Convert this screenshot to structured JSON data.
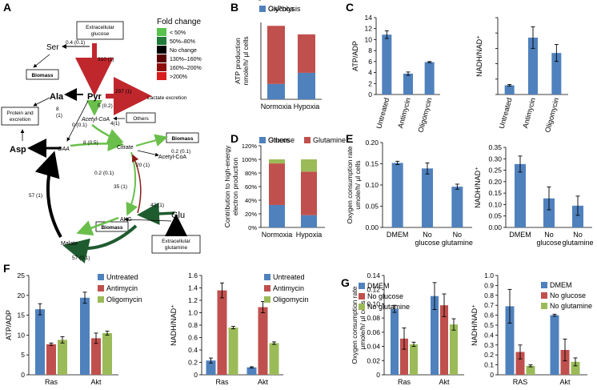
{
  "colors": {
    "blue": "#4f81bd",
    "red": "#c0504d",
    "green": "#9bbb59",
    "flux_red": "#c0272d",
    "flux_green": "#6abf4b",
    "flux_dark": "#1e5b2e",
    "legend": [
      "#57c24c",
      "#207a3a",
      "#000000",
      "#5a0000",
      "#8e0e0e",
      "#d81e1e"
    ]
  },
  "panelA": {
    "label": "A",
    "legend_title": "Fold change",
    "legend_items": [
      "< 50%",
      "50%–80%",
      "No change",
      "130%–160%",
      "160%–200%",
      ">200%"
    ],
    "boxes": {
      "ext_glucose": "Extracellular\nglucose",
      "biomass1": "Biomass",
      "others": "Others",
      "protein": "Protein and\nexcretion",
      "biomass2": "Biomass",
      "biomass3": "Biomass",
      "ext_glutamine": "Extracellular\nglutamine"
    },
    "metabolites": {
      "ser": "Ser",
      "pyr": "Pyr",
      "ala": "Ala",
      "asp": "Asp",
      "oaa": "OAA",
      "acetyl_coa": "Acetyl-CoA",
      "citrate": "Citrate",
      "acetyl_coa2": "Acetyl-CoA",
      "malate": "Malate",
      "akg": "AKG",
      "glu": "Glu",
      "lactate": "Lactate excretion"
    },
    "fluxes": {
      "glc_ser": "0.4 (0.1)",
      "glc_pyr": "310 (1)",
      "lact": "297 (1)",
      "pyr_ala": "8\n(1)",
      "pyr_oaa": "0 (0.1)",
      "pyr_acoa": "5 (0.2)",
      "others": "4(1)",
      "oaa_cit": "8 (0.5)",
      "cit_acoa": "0.2 (0.1)",
      "cit_akg": "0.2 (0.1)",
      "akg_mal": "35 (1)",
      "cit_up": "20 (1)",
      "glu_akg": "42 (1)",
      "mal_oaa": "57 (1)",
      "akg_mal_low": "57 (0.1)"
    }
  },
  "panelB": {
    "label": "B",
    "ylabel": "ATP production\nnmole/h/ μl cells",
    "chart_data": {
      "type": "bar",
      "stacked": true,
      "categories": [
        "Normoxia",
        "Hypoxia"
      ],
      "series": [
        {
          "name": "Glycolysis",
          "values": [
            180,
            310
          ]
        },
        {
          "name": "OxPhos",
          "values": [
            680,
            450
          ]
        }
      ],
      "legend": [
        "OxPhos",
        "Glycolysis"
      ],
      "ylim": [
        0,
        900
      ]
    }
  },
  "panelC": {
    "label": "C",
    "charts": [
      {
        "type": "bar",
        "ylabel": "ATP/ADP",
        "categories": [
          "Untreated",
          "Antimycin",
          "Oligomycin"
        ],
        "values": [
          10.9,
          3.8,
          5.9
        ],
        "errors": [
          0.7,
          0.3,
          0.1
        ],
        "ylim": [
          0,
          14
        ],
        "yticks": [
          "0",
          "2",
          "4",
          "6",
          "8",
          "10",
          "12",
          "14"
        ]
      },
      {
        "type": "bar",
        "ylabel": "NADH/NAD⁺",
        "categories": [
          "Untreated",
          "Antimycin",
          "Oligomycin"
        ],
        "values": [
          0.6,
          3.7,
          2.7
        ],
        "errors": [
          0.05,
          0.7,
          0.55
        ],
        "ylim": [
          0,
          5
        ],
        "yticks": [
          "",
          "",
          "",
          "",
          "",
          ""
        ]
      }
    ]
  },
  "panelD": {
    "label": "D",
    "ylabel": "Contribution to high-energy\nelectron production",
    "chart_data": {
      "type": "bar",
      "stacked": true,
      "categories": [
        "Normoxia",
        "Hypoxia"
      ],
      "series": [
        {
          "name": "Glucose",
          "values": [
            33,
            18
          ]
        },
        {
          "name": "Glutamine",
          "values": [
            61,
            64
          ]
        },
        {
          "name": "Others",
          "values": [
            6,
            18
          ]
        }
      ],
      "legend": [
        "Others",
        "Glutamine",
        "Glucose"
      ],
      "ylim": [
        0,
        120
      ],
      "yticks": [
        "0%",
        "20%",
        "40%",
        "60%",
        "80%",
        "100%",
        "120%"
      ]
    }
  },
  "panelE": {
    "label": "E",
    "charts": [
      {
        "type": "bar",
        "ylabel": "Oxygen consumption rate\numole/h/ μl cells",
        "categories": [
          "DMEM",
          "No\nglucose",
          "No\nglutamine"
        ],
        "values": [
          0.152,
          0.139,
          0.096
        ],
        "errors": [
          0.004,
          0.013,
          0.006
        ],
        "ylim": [
          0,
          0.2
        ],
        "yticks": [
          "0.00",
          "0.05",
          "0.10",
          "0.15",
          "0.20"
        ]
      },
      {
        "type": "bar",
        "ylabel": "NADH/NAD⁺",
        "categories": [
          "DMEM",
          "No\nglucose",
          "No\nglutamine"
        ],
        "values": [
          0.277,
          0.127,
          0.095
        ],
        "errors": [
          0.035,
          0.05,
          0.042
        ],
        "ylim": [
          0,
          0.35
        ],
        "yticks": [
          "0.00",
          "0.05",
          "0.10",
          "0.15",
          "0.20",
          "0.25",
          "0.30",
          "0.35"
        ]
      }
    ]
  },
  "panelF": {
    "label": "F",
    "charts": [
      {
        "type": "bar",
        "ylabel": "ATP/ADP",
        "categories": [
          "Ras",
          "Akt"
        ],
        "series": [
          {
            "name": "Untreated",
            "values": [
              16.5,
              19.4
            ],
            "errors": [
              1.4,
              1.4
            ]
          },
          {
            "name": "Antimycin",
            "values": [
              7.7,
              9.2
            ],
            "errors": [
              0.3,
              1.3
            ]
          },
          {
            "name": "Oligomycin",
            "values": [
              8.8,
              10.5
            ],
            "errors": [
              0.8,
              0.5
            ]
          }
        ],
        "ylim": [
          0,
          25
        ],
        "yticks": [
          "0",
          "5",
          "10",
          "15",
          "20",
          "25"
        ]
      },
      {
        "type": "bar",
        "ylabel": "NADH/NAD⁺",
        "categories": [
          "Ras",
          "Akt"
        ],
        "series": [
          {
            "name": "Untreated",
            "values": [
              0.23,
              0.12
            ],
            "errors": [
              0.04,
              0.01
            ]
          },
          {
            "name": "Antimycin",
            "values": [
              1.36,
              1.09
            ],
            "errors": [
              0.12,
              0.09
            ]
          },
          {
            "name": "Oligomycin",
            "values": [
              0.76,
              0.51
            ],
            "errors": [
              0.02,
              0.02
            ]
          }
        ],
        "ylim": [
          0,
          1.6
        ],
        "yticks": [
          "0",
          "0.2",
          "0.4",
          "0.6",
          "0.8",
          "1.0",
          "1.2",
          "1.4",
          "1.6"
        ]
      }
    ]
  },
  "panelG": {
    "label": "G",
    "charts": [
      {
        "type": "bar",
        "ylabel": "Oxygen consumption rate\nμmole/h/ μl cells",
        "categories": [
          "Ras",
          "Akt"
        ],
        "series": [
          {
            "name": "DMEM",
            "values": [
              0.093,
              0.111
            ],
            "errors": [
              0.005,
              0.019
            ]
          },
          {
            "name": "No glucose",
            "values": [
              0.051,
              0.098
            ],
            "errors": [
              0.015,
              0.016
            ]
          },
          {
            "name": "No glutamine",
            "values": [
              0.043,
              0.071
            ],
            "errors": [
              0.003,
              0.008
            ]
          }
        ],
        "ylim": [
          0,
          0.14
        ],
        "yticks": [
          "0",
          "0.02",
          "0.04",
          "0.06",
          "0.08",
          "0.10",
          "0.12",
          "0.14"
        ]
      },
      {
        "type": "bar",
        "ylabel": "NADH/NAD⁺",
        "categories": [
          "RAS",
          "Akt"
        ],
        "series": [
          {
            "name": "DMEM",
            "values": [
              0.69,
              0.6
            ],
            "errors": [
              0.17,
              0.01
            ]
          },
          {
            "name": "No glucose",
            "values": [
              0.23,
              0.25
            ],
            "errors": [
              0.07,
              0.11
            ]
          },
          {
            "name": "No glutamine",
            "values": [
              0.09,
              0.13
            ],
            "errors": [
              0.01,
              0.04
            ]
          }
        ],
        "ylim": [
          0,
          1.0
        ],
        "yticks": [
          "0",
          "0.1",
          "0.2",
          "0.3",
          "0.4",
          "0.5",
          "0.6",
          "0.7",
          "0.8",
          "0.9",
          "1.0"
        ]
      }
    ]
  }
}
